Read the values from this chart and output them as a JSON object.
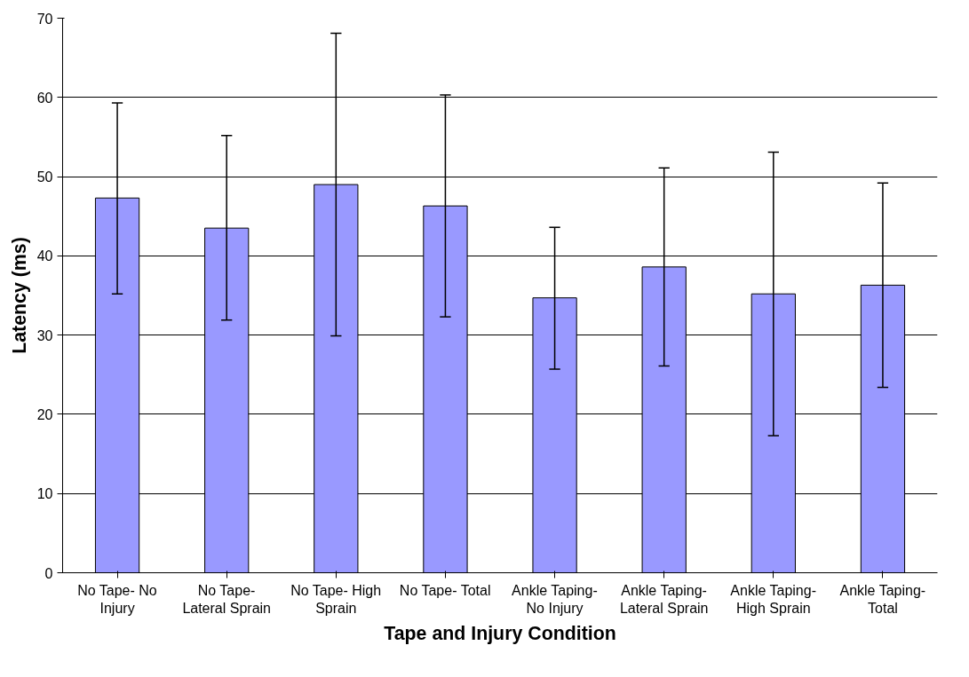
{
  "chart_data": {
    "type": "bar",
    "xlabel": "Tape and Injury Condition",
    "ylabel": "Latency (ms)",
    "categories": [
      "No Tape- No Injury",
      "No Tape- Lateral Sprain",
      "No Tape- High Sprain",
      "No Tape- Total",
      "Ankle Taping- No Injury",
      "Ankle Taping- Lateral Sprain",
      "Ankle Taping- High Sprain",
      "Ankle Taping- Total"
    ],
    "values": [
      47.3,
      43.5,
      49.0,
      46.3,
      34.7,
      38.6,
      35.2,
      36.3
    ],
    "errors": [
      [
        35.2,
        59.3
      ],
      [
        31.9,
        55.2
      ],
      [
        29.9,
        68.1
      ],
      [
        32.3,
        60.3
      ],
      [
        25.7,
        43.6
      ],
      [
        26.1,
        51.1
      ],
      [
        17.3,
        53.1
      ],
      [
        23.4,
        49.2
      ]
    ],
    "color": "#9999ff",
    "ylim": [
      0,
      70
    ],
    "yticks": [
      0,
      10,
      20,
      30,
      40,
      50,
      60,
      70
    ],
    "grid": "y"
  }
}
